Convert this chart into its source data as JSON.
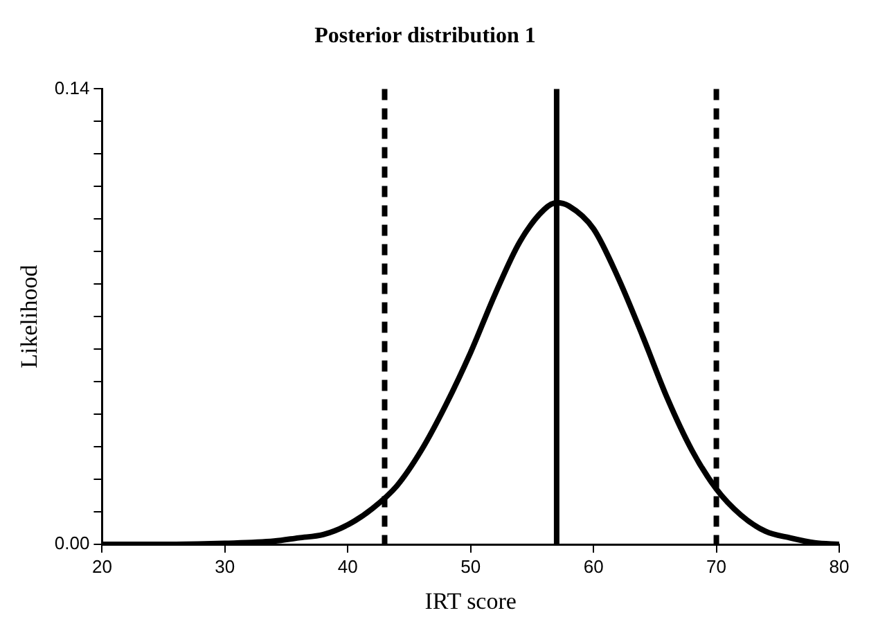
{
  "chart_data": {
    "type": "line",
    "title": "Posterior distribution 1",
    "xlabel": "IRT score",
    "ylabel": "Likelihood",
    "x": [
      20,
      26,
      30,
      34,
      36,
      38,
      40,
      42,
      44,
      46,
      48,
      50,
      52,
      54,
      56,
      57,
      58,
      60,
      62,
      64,
      66,
      68,
      70,
      72,
      74,
      76,
      78,
      80
    ],
    "series": [
      {
        "color": "#000000",
        "values": [
          0,
          0,
          0.0003,
          0.001,
          0.002,
          0.003,
          0.006,
          0.011,
          0.018,
          0.029,
          0.043,
          0.059,
          0.077,
          0.093,
          0.103,
          0.105,
          0.104,
          0.097,
          0.082,
          0.064,
          0.045,
          0.029,
          0.017,
          0.009,
          0.004,
          0.002,
          0.0005,
          0
        ]
      }
    ],
    "xlim": [
      20,
      80
    ],
    "xticks": [
      20,
      30,
      40,
      50,
      60,
      70,
      80
    ],
    "ylim": [
      0,
      0.14
    ],
    "yticks": [
      {
        "value": 0,
        "label": "0.00"
      },
      {
        "value": 0.01,
        "label": null
      },
      {
        "value": 0.02,
        "label": null
      },
      {
        "value": 0.03,
        "label": null
      },
      {
        "value": 0.04,
        "label": null
      },
      {
        "value": 0.05,
        "label": null
      },
      {
        "value": 0.06,
        "label": null
      },
      {
        "value": 0.07,
        "label": null
      },
      {
        "value": 0.08,
        "label": null
      },
      {
        "value": 0.09,
        "label": null
      },
      {
        "value": 0.1,
        "label": null
      },
      {
        "value": 0.11,
        "label": null
      },
      {
        "value": 0.12,
        "label": null
      },
      {
        "value": 0.13,
        "label": null
      },
      {
        "value": 0.14,
        "label": "0.14"
      }
    ],
    "ref_lines": [
      {
        "axis": "x",
        "value": 43,
        "color": "#000000",
        "line_style": "dashed"
      },
      {
        "axis": "x",
        "value": 57,
        "color": "#000000",
        "line_style": "solid"
      },
      {
        "axis": "x",
        "value": 70,
        "color": "#000000",
        "line_style": "dashed"
      }
    ],
    "grid": false,
    "legend": false,
    "marker": "none",
    "line_style": "solid"
  }
}
